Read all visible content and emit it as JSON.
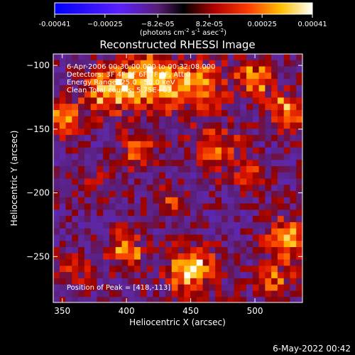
{
  "chart_data": {
    "type": "heatmap",
    "title": "Reconstructed RHESSI Image",
    "xlabel": "Heliocentric X (arcsec)",
    "ylabel": "Heliocentric Y (arcsec)",
    "xlim": [
      343,
      537
    ],
    "ylim": [
      -286,
      -91
    ],
    "x_ticks": [
      350,
      400,
      450,
      500
    ],
    "y_ticks": [
      -100,
      -150,
      -200,
      -250
    ],
    "colorbar": {
      "range": [
        -0.00041,
        0.00041
      ],
      "tick_values": [
        -0.00041,
        -0.00025,
        -8.2e-05,
        8.2e-05,
        0.00025,
        0.00041
      ],
      "tick_labels": [
        "-0.00041",
        "−0.00025",
        "−8.2e-05",
        "8.2e-05",
        "0.00025",
        "0.00041"
      ],
      "unit_main": "(photons cm",
      "unit_exp1": "-2",
      "unit_mid": " s",
      "unit_exp2": "-1",
      "unit_end": " asec",
      "unit_exp3": "-2",
      "unit_close": ")"
    },
    "info_lines": [
      "6-Apr-2006 00:30:00.000 to 00:32:08.000",
      "Detectors: 3F 4F 5F 6F 7F 8F, Att 0",
      "Energy Range: 25.0 - 50.0 keV",
      "Clean     Total counts: 5.75E+03"
    ],
    "peak_label": "Position of Peak = [418,-113]",
    "peak": [
      418,
      -113
    ]
  },
  "footer": {
    "timestamp": "6-May-2022 00:42"
  }
}
